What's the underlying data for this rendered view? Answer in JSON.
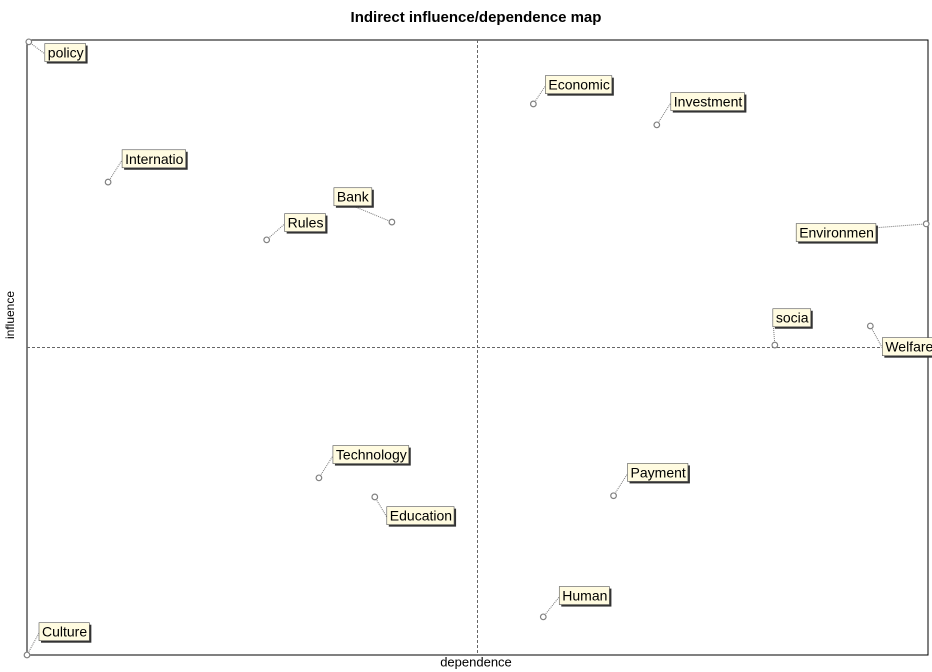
{
  "chart_data": {
    "type": "scatter",
    "title": "Indirect influence/dependence map",
    "x_label": "dependence",
    "y_label": "influence",
    "xlim": [
      0,
      100
    ],
    "ylim": [
      0,
      100
    ],
    "categories": [
      "policy",
      "Internatio",
      "Bank",
      "Rules",
      "Economic",
      "Investment",
      "Environmen",
      "socia",
      "Welfare",
      "Technology",
      "Education",
      "Payment",
      "Human",
      "Culture"
    ],
    "x": [
      0.2,
      9.0,
      40.5,
      26.6,
      56.2,
      69.9,
      99.8,
      83.0,
      93.6,
      32.4,
      38.6,
      65.1,
      57.3,
      0
    ],
    "values": [
      99.7,
      76.9,
      70.4,
      67.5,
      89.6,
      86.2,
      70.1,
      50.4,
      53.5,
      28.8,
      25.7,
      25.9,
      6.2,
      0
    ],
    "color": "#808080",
    "label_color": "#fffbe0"
  }
}
